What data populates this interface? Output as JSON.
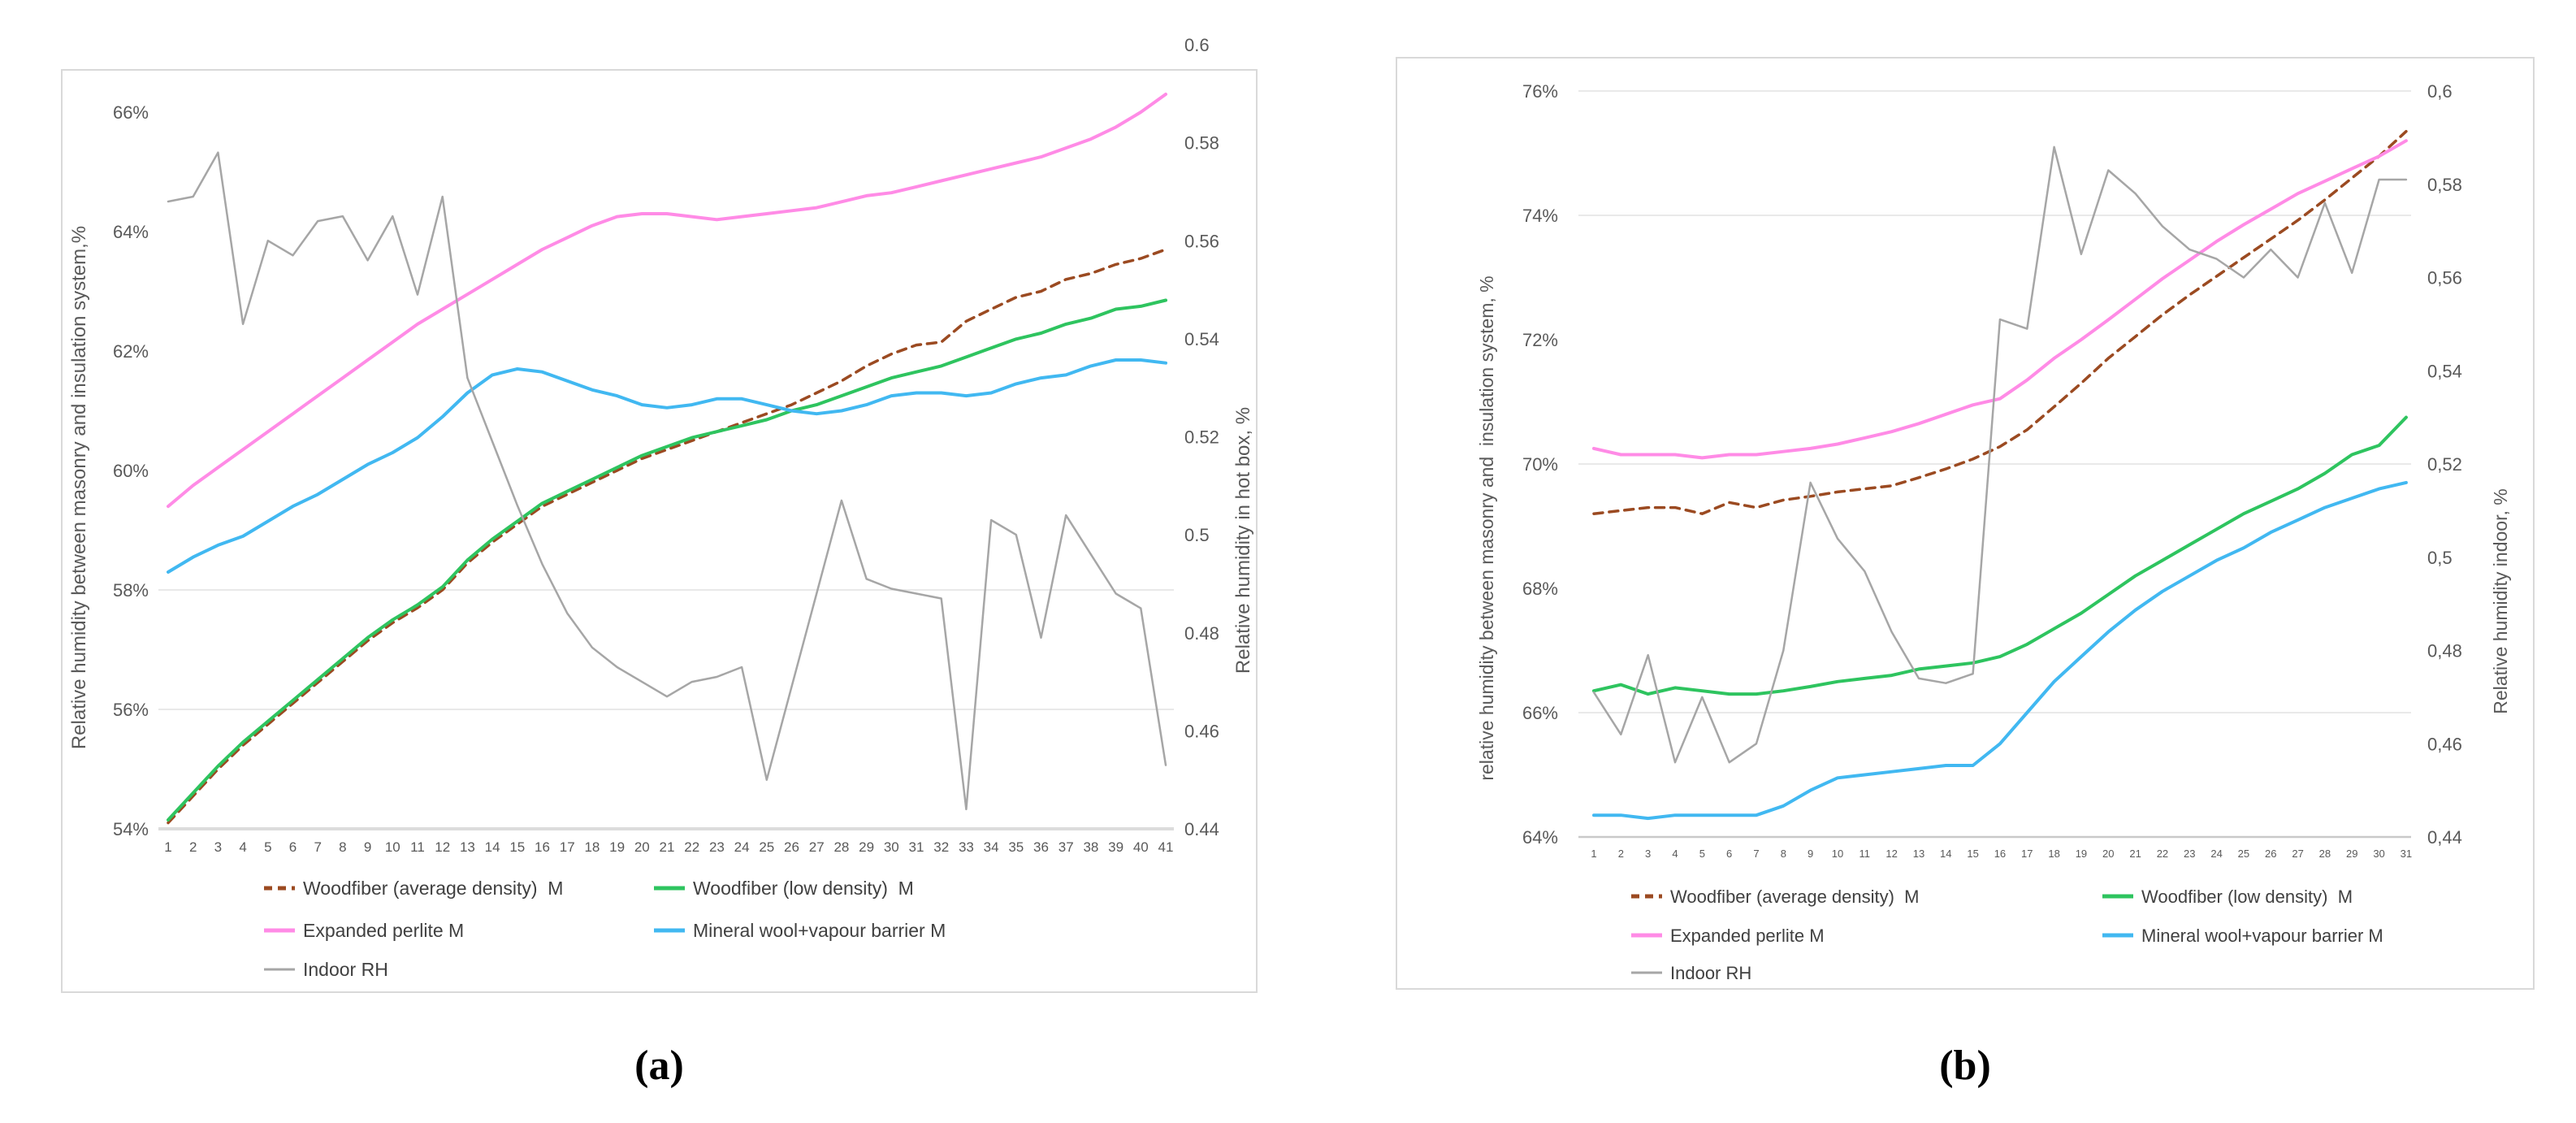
{
  "figure": {
    "captions": {
      "a": "(a)",
      "b": "(b)"
    },
    "colors": {
      "panel_border": "#d9d9d9",
      "gridline": "#e2e2e2",
      "axis_line_a": "#dcdcdc",
      "axis_line_b": "#c9c9c9",
      "tick_text": "#595959",
      "axis_title_text": "#595959",
      "legend_text": "#404040",
      "woodfiber_average": "#9b4a21",
      "woodfiber_low": "#2ec45f",
      "expanded_perlite": "#ff8be6",
      "mineral_wool": "#41b8f1",
      "indoor_rh": "#a6a6a6"
    }
  },
  "chart_data": [
    {
      "id": "a",
      "type": "line",
      "caption": "(a)",
      "x_labels": [
        "1",
        "2",
        "3",
        "4",
        "5",
        "6",
        "7",
        "8",
        "9",
        "10",
        "11",
        "12",
        "13",
        "14",
        "15",
        "16",
        "17",
        "18",
        "19",
        "20",
        "21",
        "22",
        "23",
        "24",
        "25",
        "26",
        "27",
        "28",
        "29",
        "30",
        "31",
        "32",
        "33",
        "34",
        "35",
        "36",
        "37",
        "38",
        "39",
        "40",
        "41"
      ],
      "left_axis": {
        "title": "Relative humidity between masonry and insulation system,%",
        "min": 54,
        "max": 66,
        "tick_values": [
          66,
          64,
          62,
          60,
          58,
          56,
          54
        ],
        "tick_labels": [
          "66%",
          "64%",
          "62%",
          "60%",
          "58%",
          "56%",
          "54%"
        ]
      },
      "right_axis": {
        "title": "Relative humidity in hot box, %",
        "min": 0.44,
        "max": 0.6,
        "tick_values": [
          0.6,
          0.58,
          0.56,
          0.54,
          0.52,
          0.5,
          0.48,
          0.46,
          0.44
        ],
        "tick_labels": [
          "0.6",
          "0.58",
          "0.56",
          "0.54",
          "0.52",
          "0.5",
          "0.48",
          "0.46",
          "0.44"
        ]
      },
      "gridlines_left": [
        58,
        56
      ],
      "series": [
        {
          "name": "Woodfiber (average density)  M",
          "slug": "woodfiber-average-density",
          "color": "#9b4a21",
          "dash": true,
          "axis": "left",
          "width": 3.5,
          "values": [
            54.1,
            54.55,
            55.0,
            55.4,
            55.75,
            56.1,
            56.45,
            56.8,
            57.15,
            57.45,
            57.7,
            58.0,
            58.45,
            58.8,
            59.1,
            59.4,
            59.6,
            59.8,
            60.0,
            60.2,
            60.35,
            60.5,
            60.65,
            60.8,
            60.95,
            61.1,
            61.3,
            61.5,
            61.75,
            61.95,
            62.1,
            62.15,
            62.5,
            62.7,
            62.9,
            63.0,
            63.2,
            63.3,
            63.45,
            63.55,
            63.7
          ]
        },
        {
          "name": "Woodfiber (low density)  M",
          "slug": "woodfiber-low-density",
          "color": "#2ec45f",
          "dash": false,
          "axis": "left",
          "width": 4,
          "values": [
            54.15,
            54.6,
            55.05,
            55.45,
            55.8,
            56.15,
            56.5,
            56.85,
            57.2,
            57.5,
            57.75,
            58.05,
            58.5,
            58.85,
            59.15,
            59.45,
            59.65,
            59.85,
            60.05,
            60.25,
            60.4,
            60.55,
            60.65,
            60.75,
            60.85,
            61.0,
            61.1,
            61.25,
            61.4,
            61.55,
            61.65,
            61.75,
            61.9,
            62.05,
            62.2,
            62.3,
            62.45,
            62.55,
            62.7,
            62.75,
            62.85
          ]
        },
        {
          "name": "Expanded perlite M",
          "slug": "expanded-perlite",
          "color": "#ff8be6",
          "dash": false,
          "axis": "left",
          "width": 4,
          "values": [
            59.4,
            59.75,
            60.05,
            60.35,
            60.65,
            60.95,
            61.25,
            61.55,
            61.85,
            62.15,
            62.45,
            62.7,
            62.95,
            63.2,
            63.45,
            63.7,
            63.9,
            64.1,
            64.25,
            64.3,
            64.3,
            64.25,
            64.2,
            64.25,
            64.3,
            64.35,
            64.4,
            64.5,
            64.6,
            64.65,
            64.75,
            64.85,
            64.95,
            65.05,
            65.15,
            65.25,
            65.4,
            65.55,
            65.75,
            66.0,
            66.3
          ]
        },
        {
          "name": "Mineral wool+vapour barrier M",
          "slug": "mineral-wool-vapour-barrier",
          "color": "#41b8f1",
          "dash": false,
          "axis": "left",
          "width": 4,
          "values": [
            58.3,
            58.55,
            58.75,
            58.9,
            59.15,
            59.4,
            59.6,
            59.85,
            60.1,
            60.3,
            60.55,
            60.9,
            61.3,
            61.6,
            61.7,
            61.65,
            61.5,
            61.35,
            61.25,
            61.1,
            61.05,
            61.1,
            61.2,
            61.2,
            61.1,
            61.0,
            60.95,
            61.0,
            61.1,
            61.25,
            61.3,
            61.3,
            61.25,
            61.3,
            61.45,
            61.55,
            61.6,
            61.75,
            61.85,
            61.85,
            61.8
          ]
        },
        {
          "name": "Indoor RH",
          "slug": "indoor-rh",
          "color": "#a6a6a6",
          "dash": false,
          "axis": "right",
          "width": 2.5,
          "values": [
            0.568,
            0.569,
            0.578,
            0.543,
            0.56,
            0.557,
            0.564,
            0.565,
            0.556,
            0.565,
            0.549,
            0.569,
            0.532,
            0.519,
            0.506,
            0.494,
            0.484,
            0.477,
            0.473,
            0.47,
            0.467,
            0.47,
            0.471,
            0.473,
            0.45,
            0.469,
            0.488,
            0.507,
            0.491,
            0.489,
            0.488,
            0.487,
            0.444,
            0.503,
            0.5,
            0.479,
            0.504,
            0.496,
            0.488,
            0.485,
            0.453
          ]
        }
      ]
    },
    {
      "id": "b",
      "type": "line",
      "caption": "(b)",
      "x_labels": [
        "1",
        "2",
        "3",
        "4",
        "5",
        "6",
        "7",
        "8",
        "9",
        "10",
        "11",
        "12",
        "13",
        "14",
        "15",
        "16",
        "17",
        "18",
        "19",
        "20",
        "21",
        "22",
        "23",
        "24",
        "25",
        "26",
        "27",
        "28",
        "29",
        "30",
        "31"
      ],
      "left_axis": {
        "title": "relative humidity between masonry and  insulation system, %",
        "min": 64,
        "max": 76,
        "tick_values": [
          76,
          74,
          72,
          70,
          68,
          66,
          64
        ],
        "tick_labels": [
          "76%",
          "74%",
          "72%",
          "70%",
          "68%",
          "66%",
          "64%"
        ]
      },
      "right_axis": {
        "title": "Relative humidity indoor, %",
        "min": 0.44,
        "max": 0.6,
        "tick_values": [
          0.6,
          0.58,
          0.56,
          0.54,
          0.52,
          0.5,
          0.48,
          0.46,
          0.44
        ],
        "tick_labels": [
          "0,6",
          "0,58",
          "0,56",
          "0,54",
          "0,52",
          "0,5",
          "0,48",
          "0,46",
          "0,44"
        ]
      },
      "gridlines_left": [
        76,
        74,
        70,
        66
      ],
      "series": [
        {
          "name": "Woodfiber (average density)  M",
          "slug": "woodfiber-average-density",
          "color": "#9b4a21",
          "dash": true,
          "axis": "left",
          "width": 3.5,
          "values": [
            69.2,
            69.25,
            69.3,
            69.3,
            69.2,
            69.38,
            69.3,
            69.42,
            69.48,
            69.55,
            69.6,
            69.65,
            69.78,
            69.92,
            70.08,
            70.28,
            70.55,
            70.92,
            71.3,
            71.7,
            72.05,
            72.4,
            72.72,
            73.02,
            73.32,
            73.62,
            73.92,
            74.25,
            74.6,
            74.95,
            75.35
          ]
        },
        {
          "name": "Woodfiber (low density)  M",
          "slug": "woodfiber-low-density",
          "color": "#2ec45f",
          "dash": false,
          "axis": "left",
          "width": 4,
          "values": [
            66.35,
            66.45,
            66.3,
            66.4,
            66.35,
            66.3,
            66.3,
            66.35,
            66.42,
            66.5,
            66.55,
            66.6,
            66.7,
            66.75,
            66.8,
            66.9,
            67.1,
            67.35,
            67.6,
            67.9,
            68.2,
            68.45,
            68.7,
            68.95,
            69.2,
            69.4,
            69.6,
            69.85,
            70.15,
            70.3,
            70.75
          ]
        },
        {
          "name": "Expanded perlite M",
          "slug": "expanded-perlite",
          "color": "#ff8be6",
          "dash": false,
          "axis": "left",
          "width": 4,
          "values": [
            70.25,
            70.15,
            70.15,
            70.15,
            70.1,
            70.15,
            70.15,
            70.2,
            70.25,
            70.32,
            70.42,
            70.52,
            70.65,
            70.8,
            70.95,
            71.05,
            71.35,
            71.7,
            72.0,
            72.32,
            72.65,
            72.98,
            73.28,
            73.58,
            73.85,
            74.1,
            74.35,
            74.55,
            74.75,
            74.95,
            75.2
          ]
        },
        {
          "name": "Mineral wool+vapour barrier M",
          "slug": "mineral-wool-vapour-barrier",
          "color": "#41b8f1",
          "dash": false,
          "axis": "left",
          "width": 4,
          "values": [
            64.35,
            64.35,
            64.3,
            64.35,
            64.35,
            64.35,
            64.35,
            64.5,
            64.75,
            64.95,
            65.0,
            65.05,
            65.1,
            65.15,
            65.15,
            65.5,
            66.0,
            66.5,
            66.9,
            67.3,
            67.65,
            67.95,
            68.2,
            68.45,
            68.65,
            68.9,
            69.1,
            69.3,
            69.45,
            69.6,
            69.7
          ]
        },
        {
          "name": "Indoor RH",
          "slug": "indoor-rh",
          "color": "#a6a6a6",
          "dash": false,
          "axis": "right",
          "width": 2.5,
          "values": [
            0.471,
            0.462,
            0.479,
            0.456,
            0.47,
            0.456,
            0.46,
            0.48,
            0.516,
            0.504,
            0.497,
            0.484,
            0.474,
            0.473,
            0.475,
            0.551,
            0.549,
            0.588,
            0.565,
            0.583,
            0.578,
            0.571,
            0.566,
            0.564,
            0.56,
            0.566,
            0.56,
            0.576,
            0.561,
            0.581,
            0.581
          ]
        }
      ]
    }
  ]
}
